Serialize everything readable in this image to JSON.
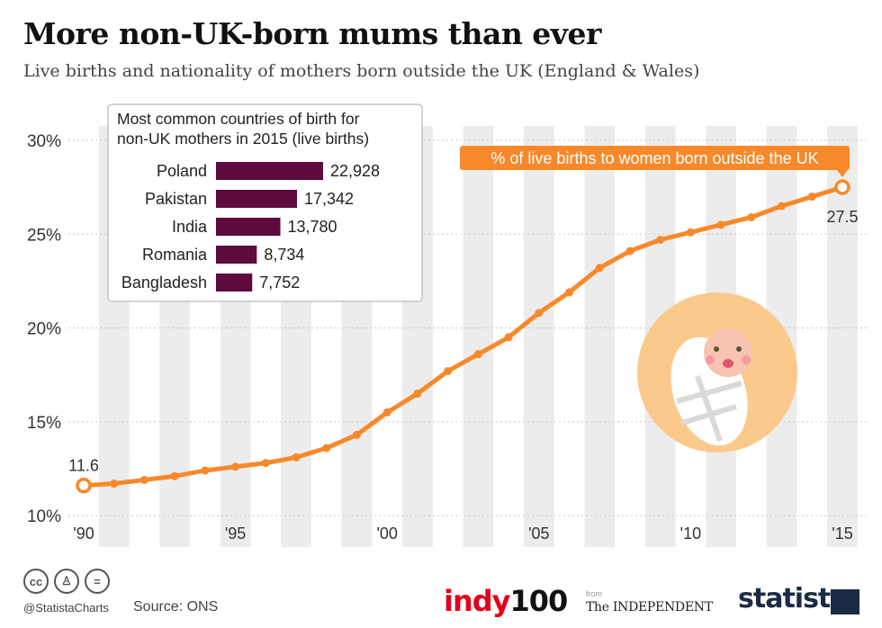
{
  "header": {
    "title": "More non-UK-born mums than ever",
    "subtitle": "Live births and nationality of mothers born outside the UK (England & Wales)"
  },
  "chart_data": [
    {
      "type": "line",
      "title": "",
      "series": [
        {
          "name": "% of live births to women born outside the UK",
          "x": [
            1990,
            1991,
            1992,
            1993,
            1994,
            1995,
            1996,
            1997,
            1998,
            1999,
            2000,
            2001,
            2002,
            2003,
            2004,
            2005,
            2006,
            2007,
            2008,
            2009,
            2010,
            2011,
            2012,
            2013,
            2014,
            2015
          ],
          "values": [
            11.6,
            11.7,
            11.9,
            12.1,
            12.4,
            12.6,
            12.8,
            13.1,
            13.6,
            14.3,
            15.5,
            16.5,
            17.7,
            18.6,
            19.5,
            20.8,
            21.9,
            23.2,
            24.1,
            24.7,
            25.1,
            25.5,
            25.9,
            26.5,
            27.0,
            27.5
          ]
        }
      ],
      "x_tick_labels": [
        "'90",
        "'95",
        "'00",
        "'05",
        "'10",
        "'15"
      ],
      "x_tick_values": [
        1990,
        1995,
        2000,
        2005,
        2010,
        2015
      ],
      "y_tick_labels": [
        "10%",
        "15%",
        "20%",
        "25%",
        "30%"
      ],
      "y_tick_values": [
        10,
        15,
        20,
        25,
        30
      ],
      "xlim": [
        1990,
        2015
      ],
      "ylim": [
        10,
        30
      ],
      "annotations": {
        "start_label": "11.6",
        "end_label": "27.5"
      },
      "grid": "alternating vertical bands",
      "legend": "top-right",
      "colors": {
        "line": "#f7892b",
        "band": "#ececec"
      }
    },
    {
      "type": "bar",
      "orientation": "horizontal",
      "title": "Most common countries of birth for non-UK mothers in 2015 (live births)",
      "title_lines": [
        "Most common countries of birth for",
        "non-UK mothers in 2015 (live births)"
      ],
      "categories": [
        "Poland",
        "Pakistan",
        "India",
        "Romania",
        "Bangladesh"
      ],
      "values": [
        22928,
        17342,
        13780,
        8734,
        7752
      ],
      "value_labels": [
        "22,928",
        "17,342",
        "13,780",
        "8,734",
        "7,752"
      ],
      "colors": {
        "bar": "#5e0a3e"
      }
    }
  ],
  "footer": {
    "handle": "@StatistaCharts",
    "source": "Source: ONS",
    "cc_icons": [
      "cc-icon",
      "by-icon",
      "nd-icon"
    ],
    "indy_brand": "indy",
    "indy_num": "100",
    "from_label": "from",
    "independent": "The INDEPENDENT",
    "statista": "statista"
  }
}
